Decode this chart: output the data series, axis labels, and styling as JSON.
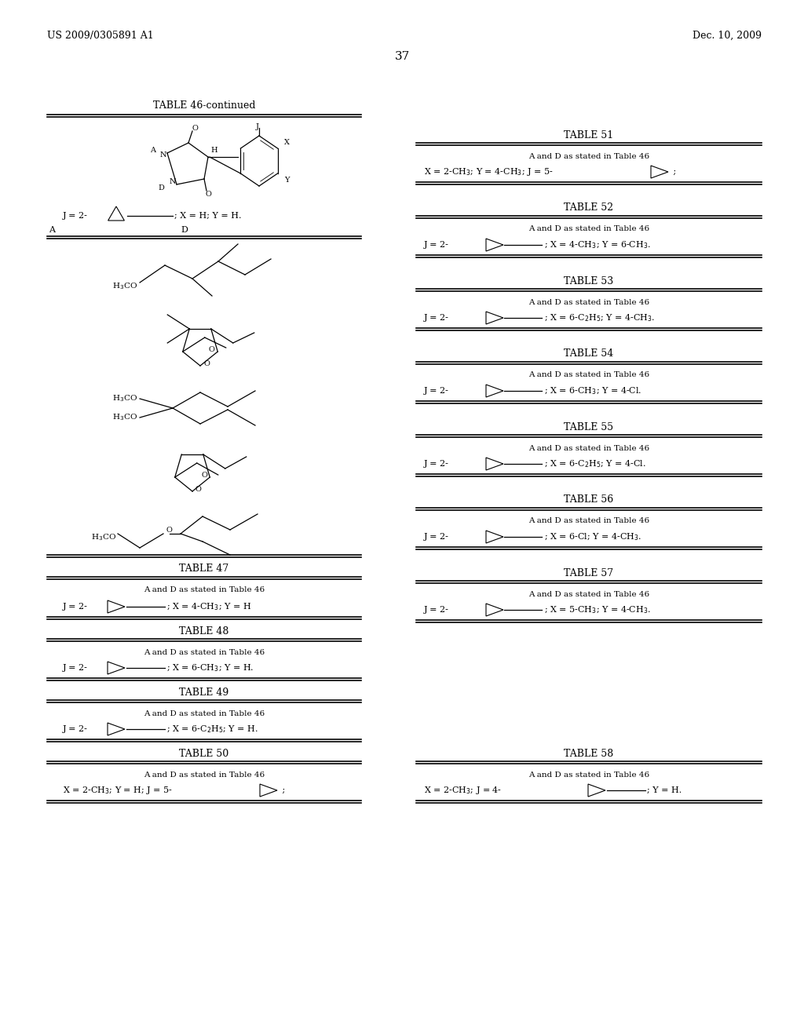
{
  "page_number": "37",
  "patent_left": "US 2009/0305891 A1",
  "patent_right": "Dec. 10, 2009",
  "background_color": "#ffffff"
}
